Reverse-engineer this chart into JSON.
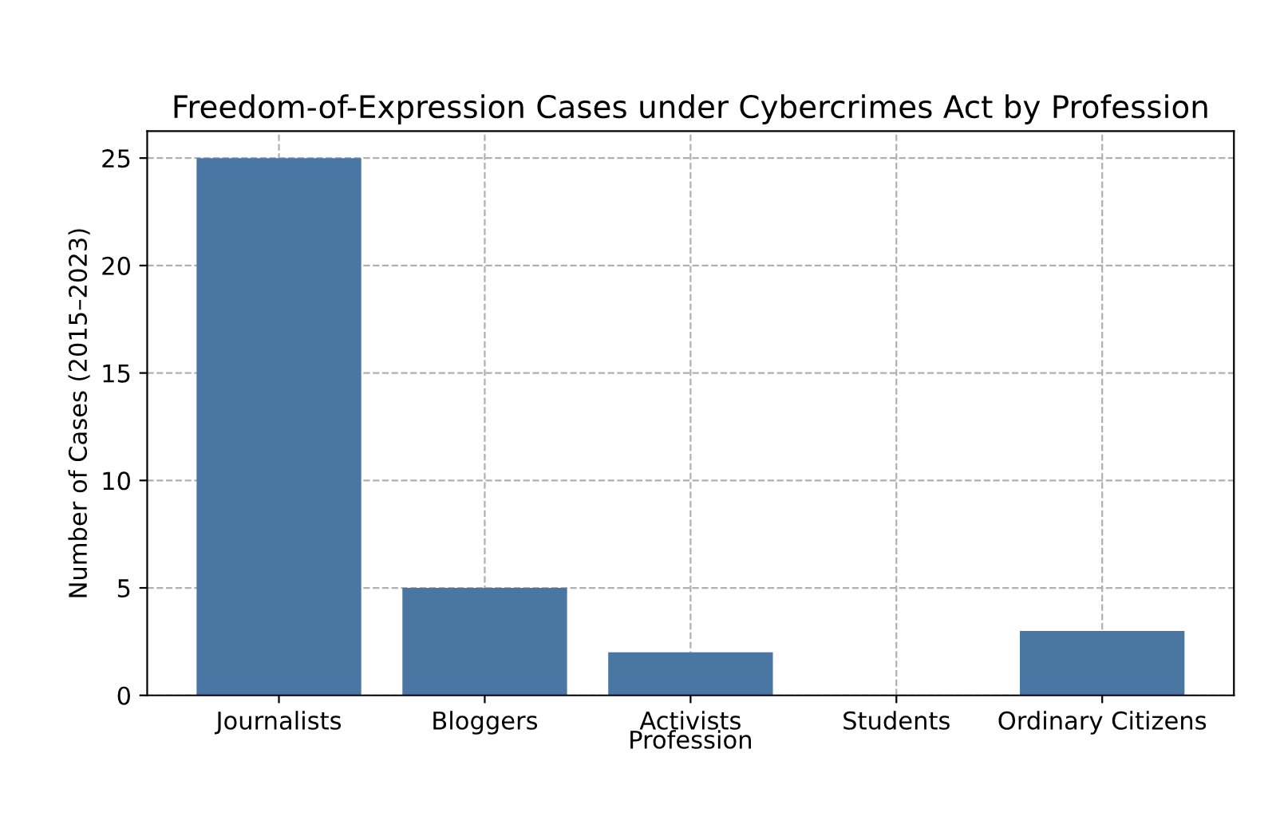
{
  "chart_data": {
    "type": "bar",
    "title": "Freedom-of-Expression Cases under Cybercrimes Act by Profession",
    "xlabel": "Profession",
    "ylabel": "Number of Cases (2015–2023)",
    "categories": [
      "Journalists",
      "Bloggers",
      "Activists",
      "Students",
      "Ordinary Citizens"
    ],
    "values": [
      25,
      5,
      2,
      0,
      3
    ],
    "color": "#4a76a4",
    "ylim": [
      0,
      26.25
    ],
    "yticks": [
      0,
      5,
      10,
      15,
      20,
      25
    ],
    "grid": true,
    "line_style": "dashed"
  }
}
